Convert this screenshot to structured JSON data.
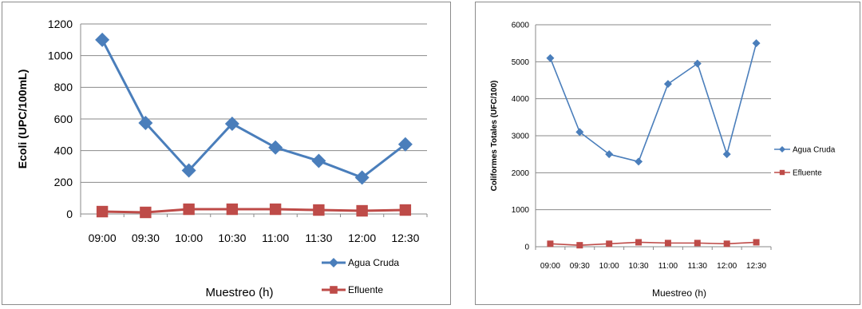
{
  "chart_data": [
    {
      "type": "line",
      "categories": [
        "09:00",
        "09:30",
        "10:00",
        "10:30",
        "11:00",
        "11:30",
        "12:00",
        "12:30"
      ],
      "series": [
        {
          "name": "Agua Cruda",
          "values": [
            1100,
            575,
            275,
            570,
            420,
            335,
            230,
            440
          ],
          "color": "#4a7ebb",
          "marker": "diamond"
        },
        {
          "name": "Efluente",
          "values": [
            15,
            10,
            30,
            30,
            30,
            25,
            20,
            25
          ],
          "color": "#be4b48",
          "marker": "square"
        }
      ],
      "yticks": [
        0,
        200,
        400,
        600,
        800,
        1000,
        1200
      ],
      "ylim": [
        0,
        1200
      ],
      "xlabel": "Muestreo (h)",
      "ylabel": "Ecoli (UPC/100mL)",
      "title": "",
      "grid": true,
      "legend": "bottom-right"
    },
    {
      "type": "line",
      "categories": [
        "09:00",
        "09:30",
        "10:00",
        "10:30",
        "11:00",
        "11:30",
        "12:00",
        "12:30"
      ],
      "series": [
        {
          "name": "Agua Cruda",
          "values": [
            5100,
            3100,
            2500,
            2300,
            4400,
            4950,
            2500,
            5500
          ],
          "color": "#4a7ebb",
          "marker": "diamond"
        },
        {
          "name": "Efluente",
          "values": [
            80,
            40,
            80,
            120,
            100,
            100,
            80,
            120
          ],
          "color": "#be4b48",
          "marker": "square"
        }
      ],
      "yticks": [
        0,
        1000,
        2000,
        3000,
        4000,
        5000,
        6000
      ],
      "ylim": [
        0,
        6000
      ],
      "xlabel": "Muestreo (h)",
      "ylabel": "Coliformes Totales (UFC/100)",
      "title": "",
      "grid": true,
      "legend": "right"
    }
  ]
}
